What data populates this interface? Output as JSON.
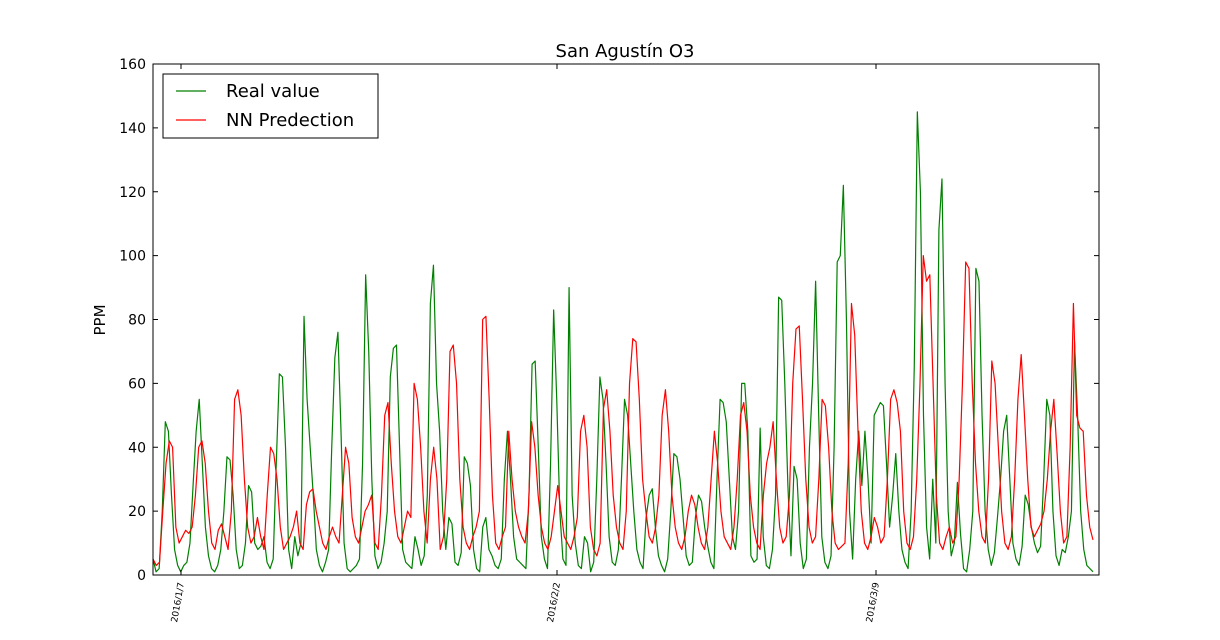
{
  "chart_data": {
    "type": "line",
    "title": "San Agustín O3",
    "xlabel": "",
    "ylabel": "PPM",
    "ylim": [
      0,
      160
    ],
    "y_ticks": [
      0,
      20,
      40,
      60,
      80,
      100,
      120,
      140,
      160
    ],
    "x_tick_labels": [
      "2016/1/7",
      "2016/2/2",
      "2016/3/9"
    ],
    "legend_position": "top-left",
    "grid": false,
    "series": [
      {
        "name": "Real value",
        "color": "#008000",
        "values": [
          5,
          1,
          2,
          20,
          48,
          45,
          25,
          8,
          3,
          1,
          3,
          4,
          10,
          28,
          45,
          55,
          35,
          15,
          6,
          2,
          1,
          3,
          8,
          20,
          37,
          36,
          25,
          8,
          2,
          3,
          10,
          28,
          26,
          10,
          8,
          9,
          12,
          4,
          2,
          5,
          35,
          63,
          62,
          40,
          8,
          2,
          12,
          6,
          10,
          81,
          55,
          40,
          25,
          8,
          3,
          1,
          4,
          8,
          40,
          68,
          76,
          45,
          10,
          2,
          1,
          2,
          3,
          5,
          35,
          94,
          70,
          30,
          6,
          2,
          4,
          10,
          20,
          62,
          71,
          72,
          40,
          8,
          4,
          3,
          2,
          12,
          8,
          3,
          6,
          25,
          85,
          97,
          60,
          45,
          20,
          8,
          18,
          16,
          4,
          3,
          7,
          37,
          35,
          28,
          8,
          2,
          1,
          15,
          18,
          8,
          6,
          3,
          2,
          5,
          30,
          45,
          30,
          12,
          5,
          4,
          3,
          2,
          25,
          66,
          67,
          40,
          12,
          5,
          2,
          35,
          83,
          55,
          20,
          5,
          3,
          90,
          25,
          10,
          3,
          2,
          12,
          10,
          1,
          4,
          30,
          62,
          55,
          35,
          12,
          4,
          3,
          8,
          30,
          55,
          50,
          35,
          20,
          8,
          4,
          2,
          18,
          25,
          27,
          15,
          6,
          3,
          1,
          5,
          20,
          38,
          37,
          30,
          18,
          6,
          3,
          4,
          18,
          25,
          23,
          15,
          9,
          4,
          2,
          30,
          55,
          54,
          48,
          30,
          12,
          8,
          20,
          60,
          60,
          45,
          6,
          4,
          5,
          46,
          12,
          3,
          2,
          8,
          25,
          87,
          86,
          60,
          28,
          6,
          34,
          30,
          10,
          2,
          5,
          40,
          60,
          92,
          50,
          12,
          4,
          2,
          6,
          40,
          98,
          100,
          122,
          80,
          20,
          5,
          30,
          45,
          28,
          45,
          30,
          10,
          50,
          52,
          54,
          53,
          35,
          15,
          25,
          38,
          20,
          8,
          4,
          2,
          20,
          65,
          145,
          120,
          50,
          15,
          5,
          30,
          10,
          108,
          124,
          60,
          20,
          6,
          10,
          29,
          13,
          2,
          1,
          8,
          20,
          96,
          92,
          50,
          20,
          8,
          3,
          7,
          18,
          30,
          45,
          50,
          30,
          10,
          5,
          3,
          9,
          25,
          22,
          15,
          10,
          7,
          9,
          30,
          55,
          50,
          20,
          6,
          3,
          8,
          7,
          12,
          20,
          73,
          50,
          20,
          8,
          3,
          2,
          1
        ]
      },
      {
        "name": "NN Predection",
        "color": "#ff0000",
        "values": [
          5,
          3,
          4,
          20,
          35,
          42,
          40,
          15,
          10,
          12,
          14,
          13,
          15,
          25,
          40,
          42,
          35,
          20,
          10,
          8,
          14,
          16,
          12,
          8,
          20,
          55,
          58,
          50,
          30,
          15,
          10,
          12,
          18,
          12,
          8,
          25,
          40,
          38,
          30,
          15,
          8,
          10,
          12,
          15,
          20,
          10,
          8,
          22,
          26,
          27,
          20,
          15,
          10,
          8,
          12,
          15,
          12,
          10,
          25,
          40,
          35,
          18,
          12,
          10,
          15,
          20,
          22,
          25,
          10,
          8,
          25,
          50,
          54,
          35,
          20,
          12,
          10,
          15,
          20,
          18,
          60,
          55,
          40,
          20,
          10,
          30,
          40,
          30,
          8,
          12,
          30,
          70,
          72,
          60,
          30,
          15,
          10,
          8,
          12,
          15,
          20,
          80,
          81,
          55,
          25,
          10,
          8,
          12,
          15,
          45,
          30,
          20,
          15,
          12,
          10,
          20,
          48,
          40,
          25,
          15,
          10,
          8,
          12,
          20,
          28,
          20,
          12,
          10,
          8,
          12,
          18,
          45,
          50,
          40,
          15,
          8,
          6,
          10,
          52,
          58,
          45,
          25,
          15,
          10,
          8,
          20,
          60,
          74,
          73,
          55,
          30,
          20,
          12,
          10,
          15,
          25,
          50,
          58,
          45,
          25,
          15,
          10,
          8,
          12,
          20,
          25,
          22,
          15,
          10,
          8,
          15,
          30,
          45,
          35,
          20,
          12,
          10,
          8,
          15,
          30,
          50,
          54,
          45,
          25,
          15,
          10,
          8,
          25,
          35,
          40,
          48,
          30,
          15,
          10,
          12,
          25,
          60,
          77,
          78,
          55,
          30,
          15,
          10,
          12,
          30,
          55,
          53,
          40,
          20,
          10,
          8,
          9,
          10,
          35,
          85,
          75,
          45,
          20,
          10,
          8,
          12,
          18,
          15,
          10,
          12,
          30,
          55,
          58,
          54,
          45,
          20,
          10,
          8,
          12,
          30,
          60,
          100,
          92,
          94,
          60,
          25,
          10,
          8,
          12,
          15,
          10,
          12,
          30,
          60,
          98,
          96,
          60,
          35,
          20,
          12,
          10,
          30,
          67,
          60,
          40,
          20,
          10,
          8,
          12,
          30,
          55,
          69,
          50,
          30,
          15,
          12,
          14,
          16,
          20,
          30,
          45,
          55,
          38,
          20,
          10,
          12,
          40,
          85,
          50,
          46,
          45,
          25,
          15,
          11
        ]
      }
    ]
  }
}
